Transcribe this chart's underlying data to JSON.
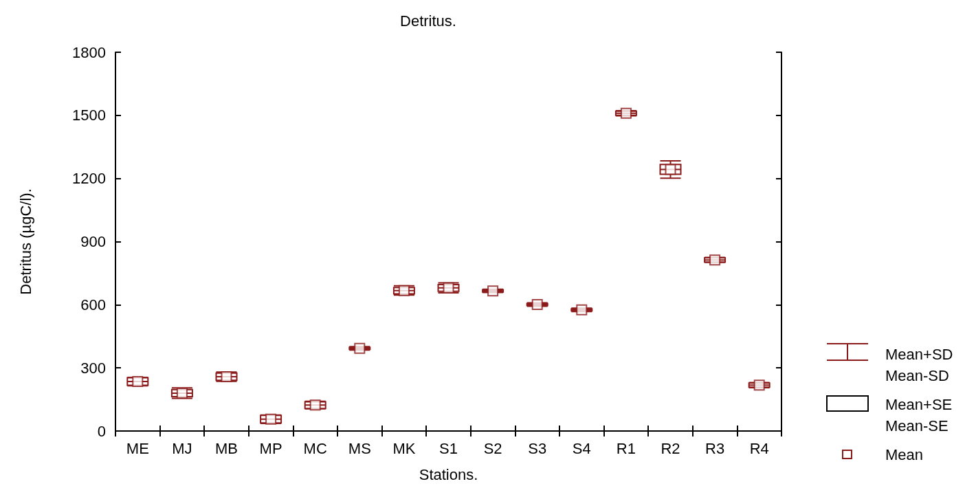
{
  "chart_data": {
    "type": "box",
    "title": "Detritus.",
    "xlabel": "Stations.",
    "ylabel": "Detritus (µgC/l).",
    "categories": [
      "ME",
      "MJ",
      "MB",
      "MP",
      "MC",
      "MS",
      "MK",
      "S1",
      "S2",
      "S3",
      "S4",
      "R1",
      "R2",
      "R3",
      "R4"
    ],
    "color": "#8b1a1a",
    "boxes": [
      {
        "low": 215,
        "q1": 217,
        "median": 235,
        "q3": 253,
        "high": 255,
        "mean": 235
      },
      {
        "low": 155,
        "q1": 163,
        "median": 180,
        "q3": 197,
        "high": 205,
        "mean": 180
      },
      {
        "low": 236,
        "q1": 241,
        "median": 258,
        "q3": 275,
        "high": 280,
        "mean": 258
      },
      {
        "low": 36,
        "q1": 38,
        "median": 56,
        "q3": 74,
        "high": 76,
        "mean": 56
      },
      {
        "low": 105,
        "q1": 107,
        "median": 123,
        "q3": 139,
        "high": 141,
        "mean": 123
      },
      {
        "low": 385,
        "q1": 388,
        "median": 393,
        "q3": 398,
        "high": 401,
        "mean": 393
      },
      {
        "low": 646,
        "q1": 652,
        "median": 667,
        "q3": 682,
        "high": 690,
        "mean": 667
      },
      {
        "low": 657,
        "q1": 664,
        "median": 680,
        "q3": 696,
        "high": 704,
        "mean": 680
      },
      {
        "low": 658,
        "q1": 661,
        "median": 666,
        "q3": 671,
        "high": 674,
        "mean": 666
      },
      {
        "low": 593,
        "q1": 596,
        "median": 601,
        "q3": 606,
        "high": 609,
        "mean": 601
      },
      {
        "low": 568,
        "q1": 571,
        "median": 576,
        "q3": 581,
        "high": 584,
        "mean": 576
      },
      {
        "low": 1498,
        "q1": 1500,
        "median": 1510,
        "q3": 1520,
        "high": 1522,
        "mean": 1510
      },
      {
        "low": 1201,
        "q1": 1220,
        "median": 1243,
        "q3": 1267,
        "high": 1284,
        "mean": 1243
      },
      {
        "low": 801,
        "q1": 803,
        "median": 813,
        "q3": 823,
        "high": 825,
        "mean": 813
      },
      {
        "low": 206,
        "q1": 208,
        "median": 218,
        "q3": 228,
        "high": 230,
        "mean": 218
      }
    ],
    "ylim": [
      0,
      1800
    ],
    "yticks": [
      0,
      300,
      600,
      900,
      1200,
      1500,
      1800
    ],
    "grid": false,
    "marker": "square",
    "annotations": [
      "Mean+SD",
      "Mean-SD",
      "Mean+SE",
      "Mean-SE",
      "Mean"
    ]
  }
}
